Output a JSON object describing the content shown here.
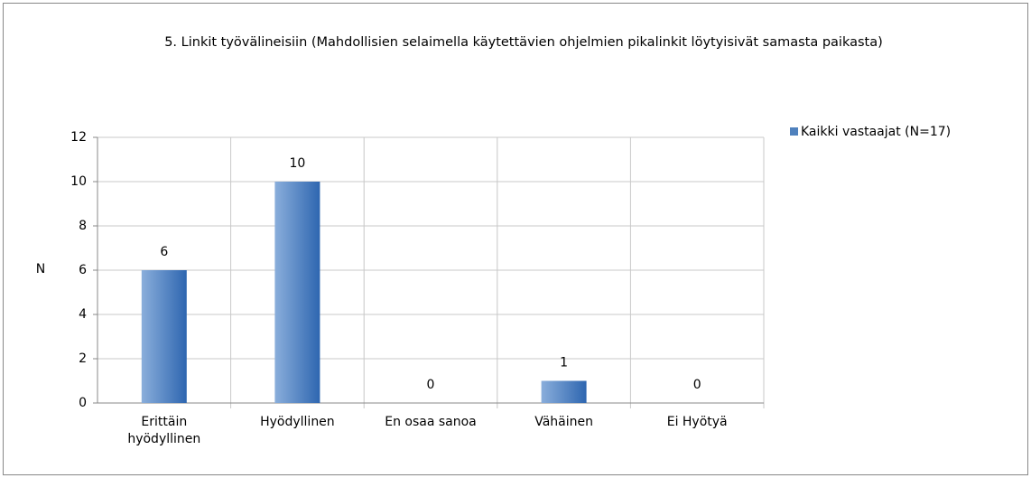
{
  "chart_data": {
    "type": "bar",
    "title": "5. Linkit työvälineisiin  (Mahdollisien selaimella käytettävien ohjelmien pikalinkit löytyisivät samasta paikasta)",
    "y_label": "N",
    "categories": [
      "Erittäin hyödyllinen",
      "Hyödyllinen",
      "En osaa sanoa",
      "Vähäinen",
      "Ei Hyötyä"
    ],
    "series": [
      {
        "name": "Kaikki vastaajat (N=17)",
        "color": "#4f81bd",
        "values": [
          6,
          10,
          0,
          1,
          0
        ]
      }
    ],
    "ylim": [
      0,
      12
    ],
    "yticks": [
      0,
      2,
      4,
      6,
      8,
      10,
      12
    ],
    "grid": true,
    "legend": "right"
  }
}
